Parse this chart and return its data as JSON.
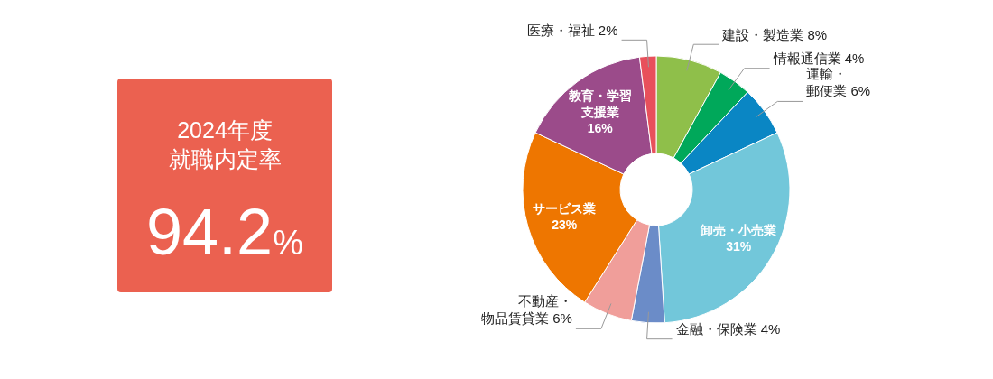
{
  "chart_data": [
    {
      "type": "other",
      "title": "2024年度就職内定率",
      "annotations": [
        "94.2%"
      ]
    },
    {
      "type": "donut",
      "categories": [
        "建設・製造業",
        "情報通信業",
        "運輸・郵便業",
        "卸売・小売業",
        "金融・保険業",
        "不動産・物品賃貸業",
        "サービス業",
        "教育・学習支援業",
        "医療・福祉"
      ],
      "values": [
        8,
        4,
        6,
        31,
        4,
        6,
        23,
        16,
        2
      ],
      "value_labels": [
        "8%",
        "4%",
        "6%",
        "31%",
        "4%",
        "6%",
        "23%",
        "16%",
        "2%"
      ],
      "colors": [
        "#8fbf4a",
        "#00a85a",
        "#0a86c4",
        "#72c7da",
        "#6b8cc8",
        "#f09e9a",
        "#ee7600",
        "#9b4b8a",
        "#e8505b"
      ]
    }
  ]
}
